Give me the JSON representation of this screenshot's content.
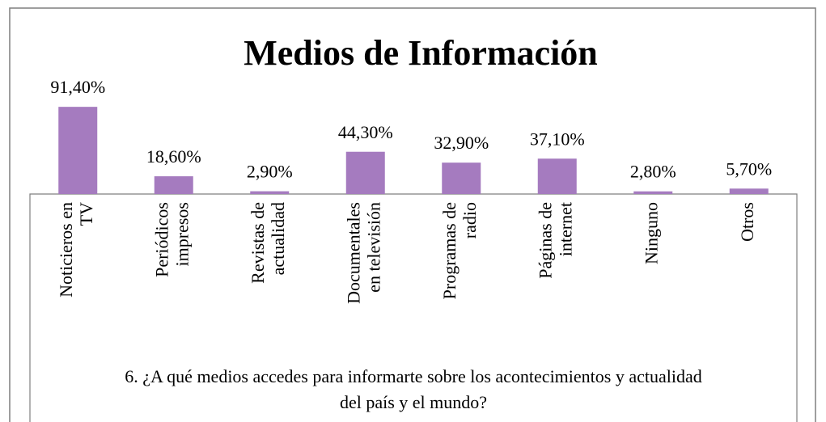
{
  "chart_data": {
    "type": "bar",
    "title": "Medios de Información",
    "categories": [
      [
        "Noticieros en",
        "TV"
      ],
      [
        "Periódicos",
        "impresos"
      ],
      [
        "Revistas de",
        "actualidad"
      ],
      [
        "Documentales",
        "en televisión"
      ],
      [
        "Programas de",
        "radio"
      ],
      [
        "Páginas de",
        "internet"
      ],
      [
        "Ninguno"
      ],
      [
        "Otros"
      ]
    ],
    "values": [
      91.4,
      18.6,
      2.9,
      44.3,
      32.9,
      37.1,
      2.8,
      5.7
    ],
    "value_labels": [
      "91,40%",
      "18,60%",
      "2,90%",
      "44,30%",
      "32,90%",
      "37,10%",
      "2,80%",
      "5,70%"
    ],
    "color": "#a57bbf",
    "ylim": [
      0,
      100
    ],
    "x_label": [
      "6. ¿A qué medios accedes para informarte sobre los acontecimientos y actualidad",
      "del país y el mundo?"
    ]
  }
}
